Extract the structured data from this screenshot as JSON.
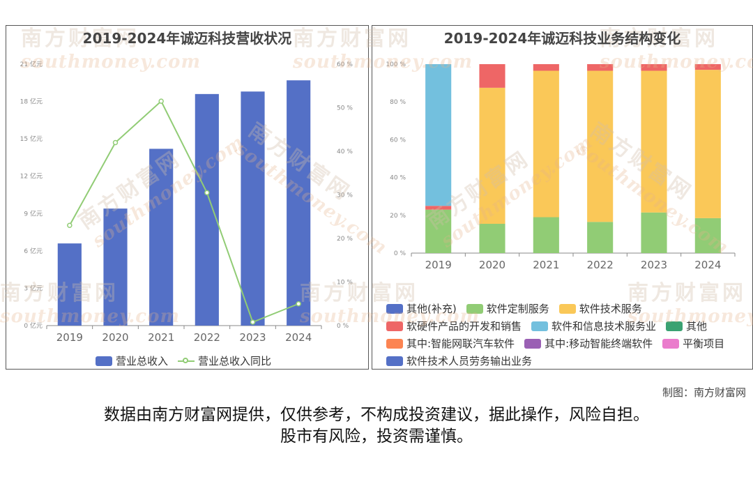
{
  "left_chart": {
    "title": "2019-2024年诚迈科技营收状况",
    "legend": [
      {
        "name": "营业总收入",
        "kind": "bar",
        "color": "#5470c6"
      },
      {
        "name": "营业总收入同比",
        "kind": "line",
        "color": "#91cc75"
      }
    ]
  },
  "right_chart": {
    "title": "2019-2024年诚迈科技业务结构变化",
    "legend_rows": [
      [
        {
          "name": "其他(补充)",
          "color": "#5470c6"
        },
        {
          "name": "软件定制服务",
          "color": "#91cc75"
        },
        {
          "name": "软件技术服务",
          "color": "#fac858"
        }
      ],
      [
        {
          "name": "软硬件产品的开发和销售",
          "color": "#ee6666"
        },
        {
          "name": "软件和信息技术服务业",
          "color": "#73c0de"
        },
        {
          "name": "其他",
          "color": "#3ba272"
        }
      ],
      [
        {
          "name": "其中:智能网联汽车软件",
          "color": "#fc8452"
        },
        {
          "name": "其中:移动智能终端软件",
          "color": "#9a60b4"
        },
        {
          "name": "平衡项目",
          "color": "#ea7ccc"
        }
      ],
      [
        {
          "name": "软件技术人员劳务输出业务",
          "color": "#5470c6"
        }
      ]
    ]
  },
  "watermark": {
    "cn": "南方财富网",
    "en": "southmoney.com"
  },
  "footer": {
    "credit": "制图：南方财富网",
    "disclaimer_line1": "数据由南方财富网提供，仅供参考，不构成投资建议，据此操作，风险自担。",
    "disclaimer_line2": "股市有风险，投资需谨慎。"
  },
  "chart_data": [
    {
      "type": "bar",
      "title": "2019-2024年诚迈科技营收状况",
      "categories": [
        "2019",
        "2020",
        "2021",
        "2022",
        "2023",
        "2024"
      ],
      "y_axis_left": {
        "min": 0,
        "max": 21,
        "step": 3,
        "unit": "亿元"
      },
      "y_axis_right": {
        "min": 0,
        "max": 60,
        "step": 10,
        "unit": "%"
      },
      "series": [
        {
          "name": "营业总收入",
          "type": "bar",
          "axis": "left",
          "color": "#5470c6",
          "values": [
            6.6,
            9.4,
            14.2,
            18.6,
            18.8,
            19.7
          ]
        },
        {
          "name": "营业总收入同比",
          "type": "line",
          "axis": "right",
          "color": "#91cc75",
          "values": [
            23.0,
            42.0,
            51.5,
            30.5,
            0.8,
            5.0
          ]
        }
      ],
      "grid": false,
      "legend_position": "bottom"
    },
    {
      "type": "bar",
      "stacked": true,
      "title": "2019-2024年诚迈科技业务结构变化",
      "categories": [
        "2019",
        "2020",
        "2021",
        "2022",
        "2023",
        "2024"
      ],
      "y_axis": {
        "min": 0,
        "max": 100,
        "step": 20,
        "unit": "%"
      },
      "series": [
        {
          "name": "软件定制服务",
          "color": "#91cc75",
          "values": [
            23.0,
            15.5,
            19.0,
            16.5,
            21.5,
            18.5
          ]
        },
        {
          "name": "软硬件产品的开发和销售",
          "color": "#ee6666",
          "values": [
            2.0,
            12.5,
            3.5,
            3.5,
            3.5,
            3.0
          ]
        },
        {
          "name": "软件和信息技术服务业",
          "color": "#73c0de",
          "values": [
            75.0,
            0,
            0,
            0,
            0,
            0
          ]
        },
        {
          "name": "软件技术服务",
          "color": "#fac858",
          "values": [
            0,
            72.0,
            77.5,
            80.0,
            75.0,
            78.5
          ]
        }
      ],
      "stack_order": [
        "软件定制服务",
        "软件技术服务",
        "软硬件产品的开发和销售",
        "软件和信息技术服务业"
      ],
      "legend_position": "bottom"
    }
  ]
}
